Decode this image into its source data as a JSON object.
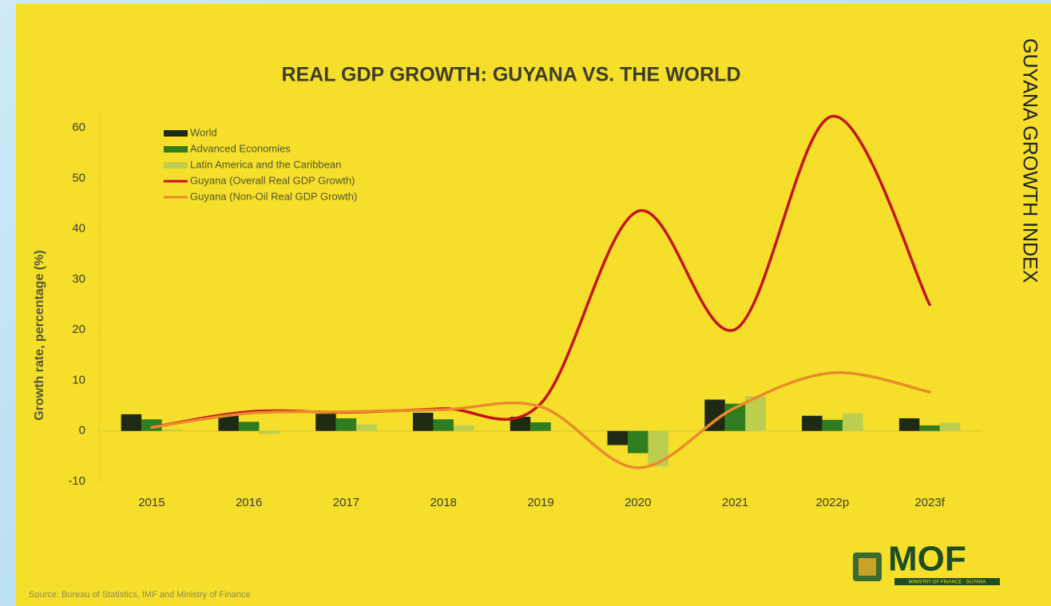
{
  "chart_data": {
    "type": "combo",
    "title": "REAL GDP GROWTH: GUYANA VS. THE WORLD",
    "y_label": "Growth rate, percentage (%)",
    "categories": [
      "2015",
      "2016",
      "2017",
      "2018",
      "2019",
      "2020",
      "2021",
      "2022p",
      "2023f"
    ],
    "series": [
      {
        "name": "World",
        "type": "bar",
        "color": "#1f2a14",
        "values": [
          3.3,
          3.2,
          3.4,
          3.6,
          2.8,
          -2.8,
          6.2,
          3.0,
          2.5
        ]
      },
      {
        "name": "Advanced Economies",
        "type": "bar",
        "color": "#2f7d1f",
        "values": [
          2.3,
          1.8,
          2.5,
          2.3,
          1.7,
          -4.4,
          5.4,
          2.2,
          1.1
        ]
      },
      {
        "name": "Latin America and the Caribbean",
        "type": "bar",
        "color": "#bccd4f",
        "values": [
          0.3,
          -0.6,
          1.3,
          1.1,
          0.1,
          -7.0,
          6.9,
          3.5,
          1.6
        ]
      },
      {
        "name": "Guyana (Overall Real GDP Growth)",
        "type": "line",
        "color": "#c4141c",
        "values": [
          0.7,
          3.8,
          3.7,
          4.4,
          5.4,
          43.5,
          20.1,
          62.3,
          25.0
        ]
      },
      {
        "name": "Guyana (Non-Oil Real GDP Growth)",
        "type": "line",
        "color": "#ea8a2a",
        "values": [
          0.7,
          3.5,
          3.8,
          4.2,
          4.8,
          -7.3,
          4.6,
          11.5,
          7.7
        ]
      }
    ],
    "ylim": [
      -10,
      65
    ],
    "yticks": [
      -10,
      0,
      10,
      20,
      30,
      40,
      50,
      60
    ],
    "grid": false,
    "legend": "upper left"
  },
  "side_title": "GUYANA GROWTH INDEX",
  "source": "Source: Bureau of Statistics, IMF and Ministry of Finance",
  "logo": {
    "text": "MOF",
    "subtext": "MINISTRY OF FINANCE · GUYANA"
  }
}
